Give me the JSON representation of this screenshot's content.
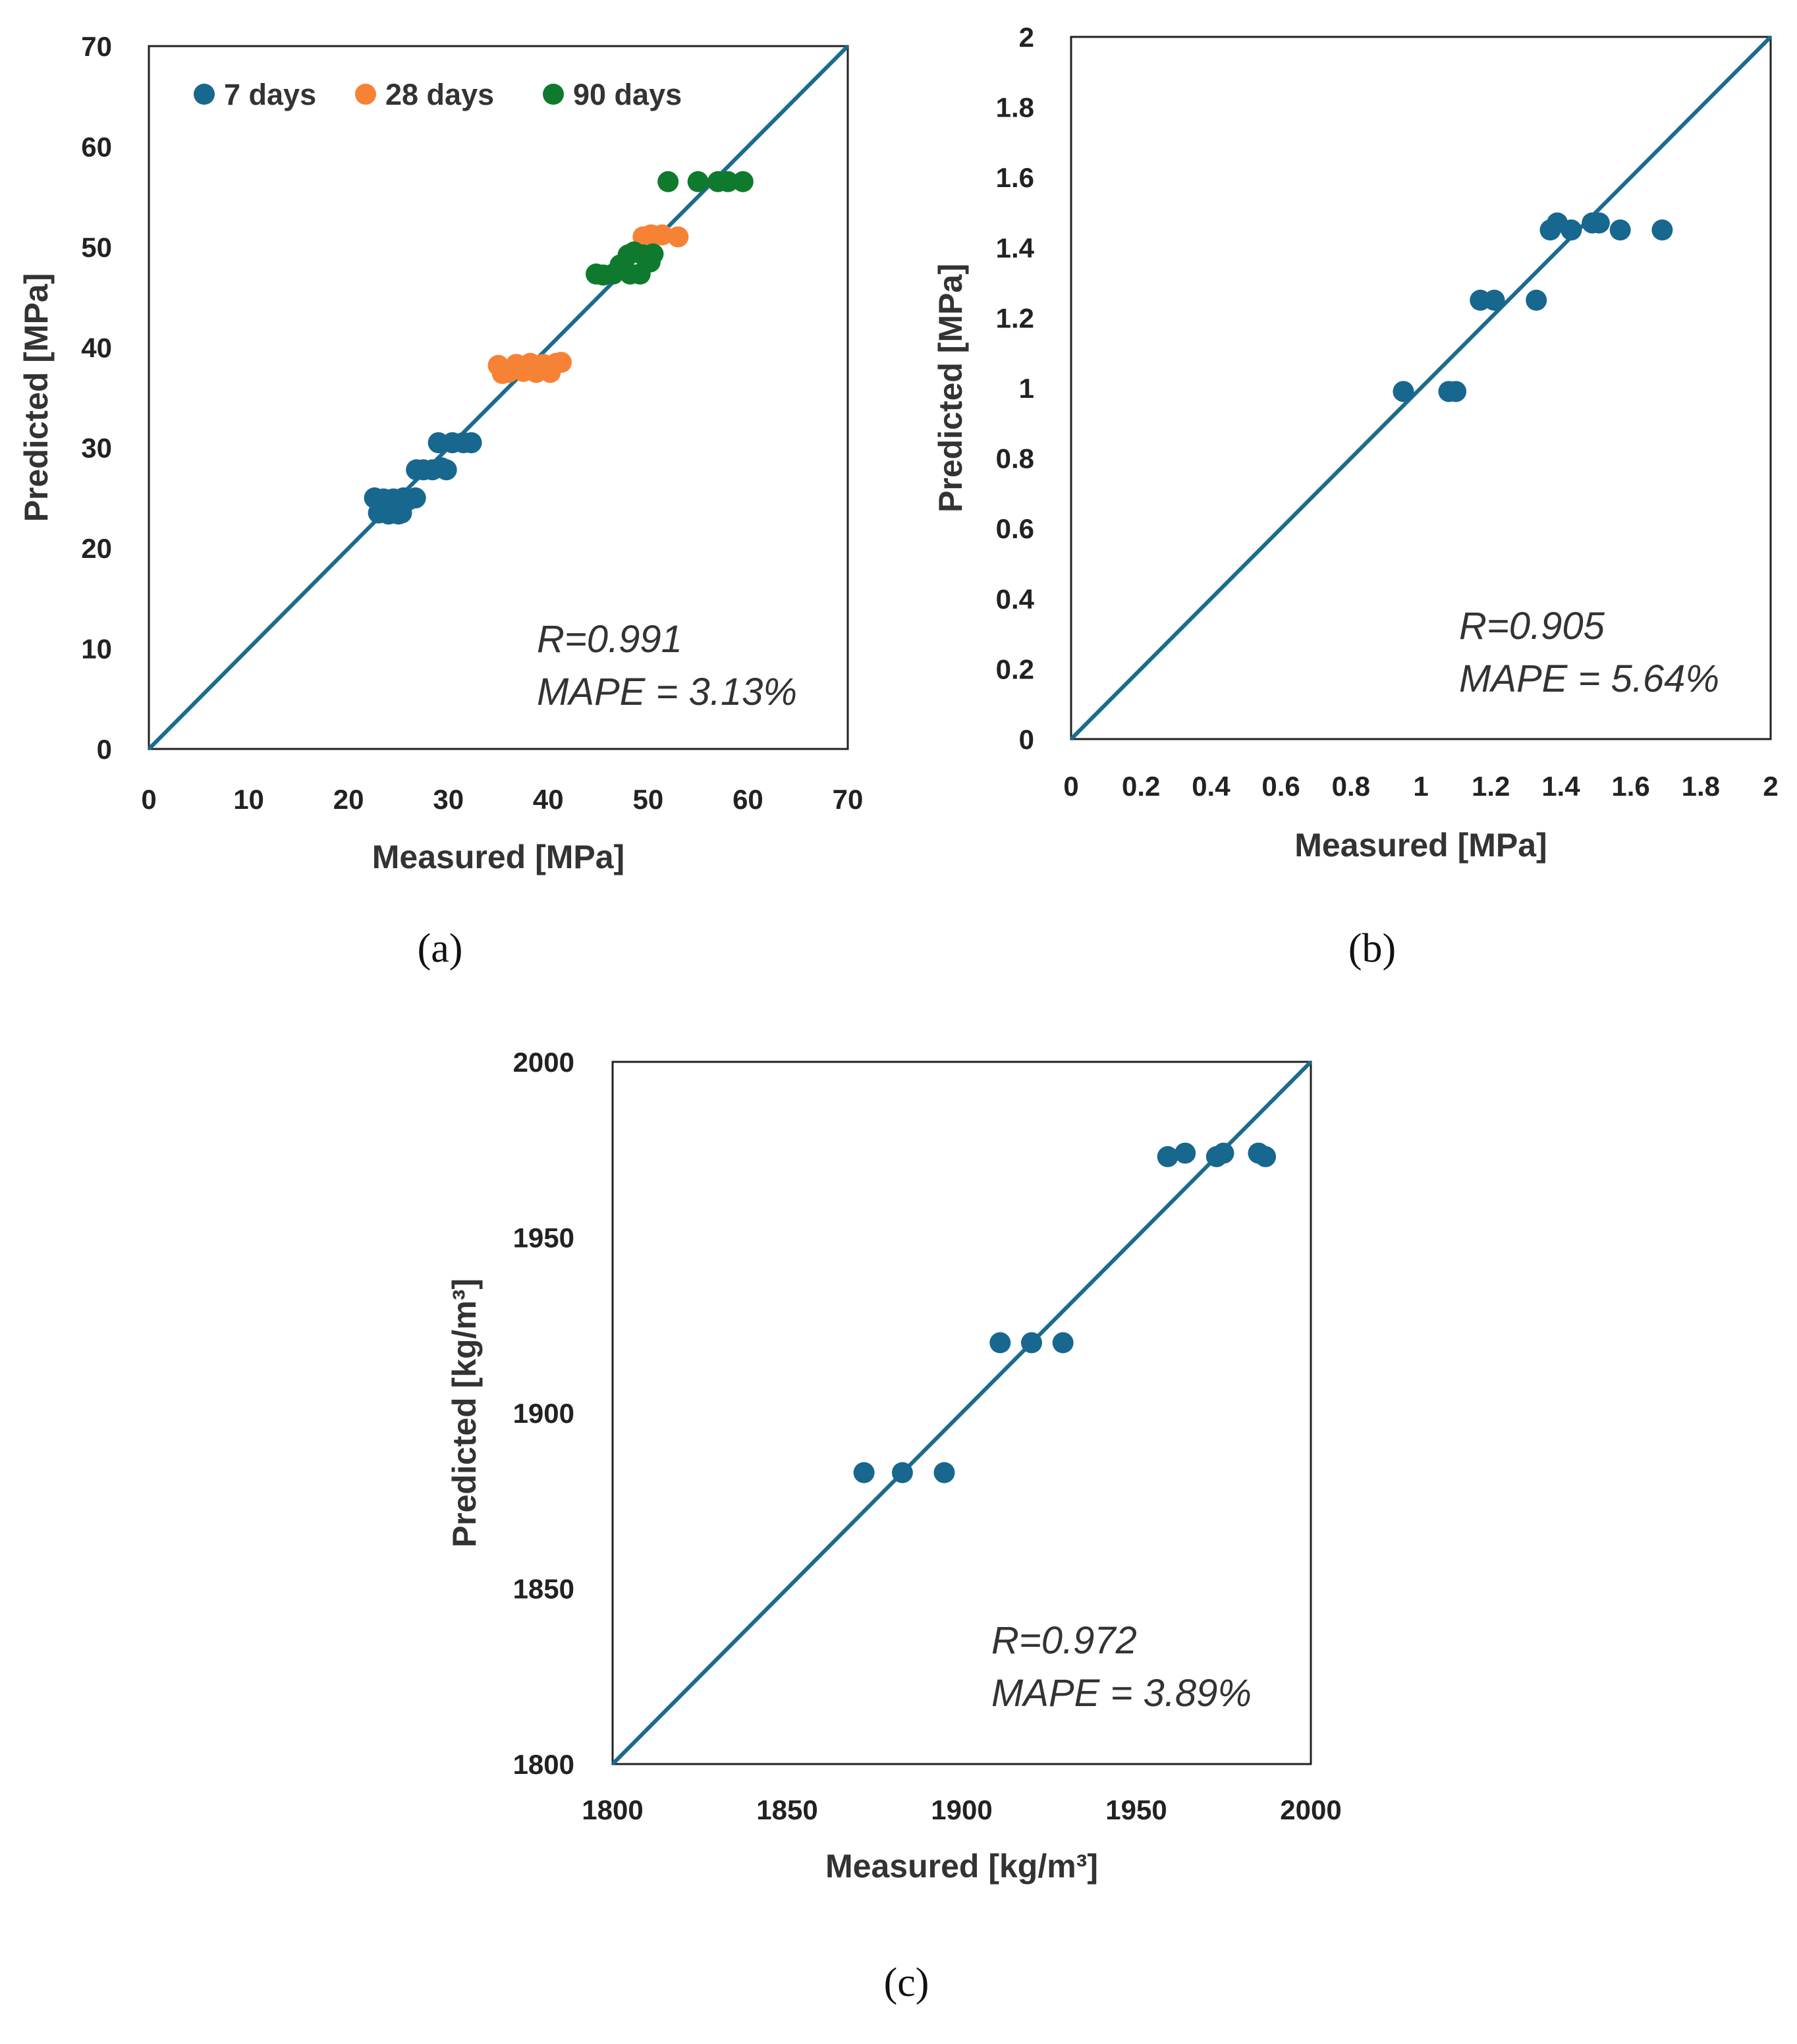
{
  "colors": {
    "7_days": "#17678e",
    "28_days": "#f68236",
    "90_days": "#0f7a2e",
    "single": "#17678e",
    "line": "#1b6b8f"
  },
  "chart_data": [
    {
      "type": "scatter",
      "panel_label": "(a)",
      "xlabel": "Measured [MPa]",
      "ylabel": "Predicted [MPa]",
      "xlim": [
        0,
        70
      ],
      "ylim": [
        0,
        70
      ],
      "xticks": [
        "0",
        "10",
        "20",
        "30",
        "40",
        "50",
        "60",
        "70"
      ],
      "yticks": [
        "0",
        "10",
        "20",
        "30",
        "40",
        "50",
        "60",
        "70"
      ],
      "grid": false,
      "legend_position": "top-left",
      "reference_line": "y = x",
      "stats": [
        "R=0.991",
        "MAPE = 3.13%"
      ],
      "series": [
        {
          "name": "7 days",
          "color_key": "7_days",
          "points": [
            [
              22.6,
              25
            ],
            [
              23,
              23.5
            ],
            [
              23.5,
              24.9
            ],
            [
              24,
              23.4
            ],
            [
              24.5,
              24.9
            ],
            [
              25,
              23.4
            ],
            [
              25.5,
              25
            ],
            [
              26,
              24.8
            ],
            [
              26.7,
              25
            ],
            [
              26.8,
              27.8
            ],
            [
              27.5,
              27.8
            ],
            [
              28.4,
              27.8
            ],
            [
              29.3,
              28
            ],
            [
              29.8,
              27.8
            ],
            [
              29,
              30.5
            ],
            [
              30.4,
              30.5
            ],
            [
              31.5,
              30.5
            ],
            [
              32.3,
              30.5
            ],
            [
              24.6,
              23.5
            ],
            [
              25.3,
              23.5
            ]
          ]
        },
        {
          "name": "28 days",
          "color_key": "28_days",
          "points": [
            [
              35,
              38.2
            ],
            [
              35.4,
              37.4
            ],
            [
              36,
              37.5
            ],
            [
              36.8,
              38.3
            ],
            [
              37.5,
              37.6
            ],
            [
              38.2,
              38.4
            ],
            [
              38.8,
              37.5
            ],
            [
              39.5,
              38.3
            ],
            [
              40.2,
              37.5
            ],
            [
              40.8,
              38.4
            ],
            [
              41.3,
              38.5
            ],
            [
              49.5,
              51
            ],
            [
              50.3,
              51.2
            ],
            [
              51.4,
              51.2
            ],
            [
              53,
              51
            ],
            [
              37.8,
              38.2
            ]
          ]
        },
        {
          "name": "90 days",
          "color_key": "90_days",
          "points": [
            [
              44.8,
              47.3
            ],
            [
              45.5,
              47.2
            ],
            [
              46.5,
              47.3
            ],
            [
              47.2,
              48.2
            ],
            [
              48,
              49.2
            ],
            [
              48.6,
              49.5
            ],
            [
              49.2,
              47.3
            ],
            [
              49.5,
              49.2
            ],
            [
              50.2,
              48.5
            ],
            [
              50.5,
              49.3
            ],
            [
              48.2,
              47.3
            ],
            [
              52,
              56.5
            ],
            [
              55,
              56.5
            ],
            [
              57,
              56.5
            ],
            [
              58,
              56.5
            ],
            [
              59.5,
              56.5
            ]
          ]
        }
      ]
    },
    {
      "type": "scatter",
      "panel_label": "(b)",
      "xlabel": "Measured [MPa]",
      "ylabel": "Predicted [MPa]",
      "xlim": [
        0,
        2
      ],
      "ylim": [
        0,
        2
      ],
      "xticks": [
        "0",
        "0.2",
        "0.4",
        "0.6",
        "0.8",
        "1",
        "1.2",
        "1.4",
        "1.6",
        "1.8",
        "2"
      ],
      "yticks": [
        "0",
        "0.2",
        "0.4",
        "0.6",
        "0.8",
        "1",
        "1.2",
        "1.4",
        "1.6",
        "1.8",
        "2"
      ],
      "grid": false,
      "reference_line": "y = x",
      "stats": [
        "R=0.905",
        "MAPE = 5.64%"
      ],
      "series": [
        {
          "color_key": "single",
          "points": [
            [
              0.95,
              0.99
            ],
            [
              1.08,
              0.99
            ],
            [
              1.1,
              0.99
            ],
            [
              1.17,
              1.25
            ],
            [
              1.21,
              1.25
            ],
            [
              1.33,
              1.25
            ],
            [
              1.37,
              1.45
            ],
            [
              1.39,
              1.47
            ],
            [
              1.43,
              1.45
            ],
            [
              1.49,
              1.47
            ],
            [
              1.51,
              1.47
            ],
            [
              1.57,
              1.45
            ],
            [
              1.69,
              1.45
            ]
          ]
        }
      ]
    },
    {
      "type": "scatter",
      "panel_label": "(c)",
      "xlabel": "Measured [kg/m³]",
      "ylabel": "Predicted [kg/m³]",
      "xlim": [
        1800,
        2000
      ],
      "ylim": [
        1800,
        2000
      ],
      "xticks": [
        "1800",
        "1850",
        "1900",
        "1950",
        "2000"
      ],
      "yticks": [
        "1800",
        "1850",
        "1900",
        "1950",
        "2000"
      ],
      "grid": false,
      "reference_line": "y = x",
      "stats": [
        "R=0.972",
        "MAPE = 3.89%"
      ],
      "series": [
        {
          "color_key": "single",
          "points": [
            [
              1872,
              1883
            ],
            [
              1883,
              1883
            ],
            [
              1895,
              1883
            ],
            [
              1911,
              1920
            ],
            [
              1920,
              1920
            ],
            [
              1929,
              1920
            ],
            [
              1959,
              1973
            ],
            [
              1964,
              1974
            ],
            [
              1973,
              1973
            ],
            [
              1975,
              1974
            ],
            [
              1985,
              1974
            ],
            [
              1987,
              1973
            ]
          ]
        }
      ]
    }
  ]
}
